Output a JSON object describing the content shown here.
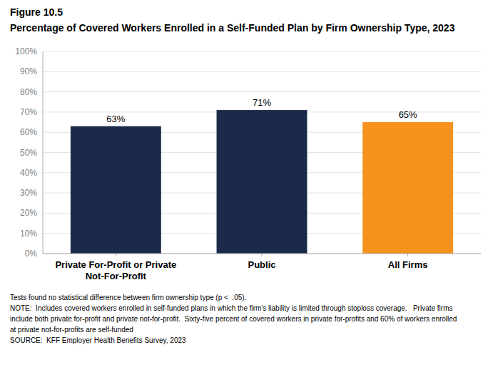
{
  "chart_data": {
    "type": "bar",
    "figure_label": "Figure 10.5",
    "title": "Percentage of Covered Workers Enrolled in a Self-Funded Plan by Firm Ownership Type, 2023",
    "categories": [
      "Private For-Profit or Private\nNot-For-Profit",
      "Public",
      "All Firms"
    ],
    "values": [
      63,
      71,
      65
    ],
    "value_labels": [
      "63%",
      "71%",
      "65%"
    ],
    "colors": [
      "#1b2a4a",
      "#1b2a4a",
      "#f5921e"
    ],
    "data_labels": true,
    "ylim": [
      0,
      100
    ],
    "yticks": [
      {
        "value": 0,
        "label": "0%"
      },
      {
        "value": 10,
        "label": "10%"
      },
      {
        "value": 20,
        "label": "20%"
      },
      {
        "value": 30,
        "label": "30%"
      },
      {
        "value": 40,
        "label": "40%"
      },
      {
        "value": 50,
        "label": "50%"
      },
      {
        "value": 60,
        "label": "60%"
      },
      {
        "value": 70,
        "label": "70%"
      },
      {
        "value": 80,
        "label": "80%"
      },
      {
        "value": 90,
        "label": "90%"
      },
      {
        "value": 100,
        "label": "100%"
      }
    ],
    "grid": true,
    "footnotes": [
      "Tests found no statistical difference between firm ownership type (p <  .05).",
      "NOTE:  Includes covered workers enrolled in self-funded plans in which the firm's liability is limited through stoploss coverage.   Private firms",
      "include both private for-profit and private not-for-profit.  Sixty-five percent of covered workers in private for-profits and 60% of workers enrolled",
      "at private not-for-profits are self-funded",
      "SOURCE:  KFF Employer Health Benefits Survey, 2023"
    ]
  }
}
